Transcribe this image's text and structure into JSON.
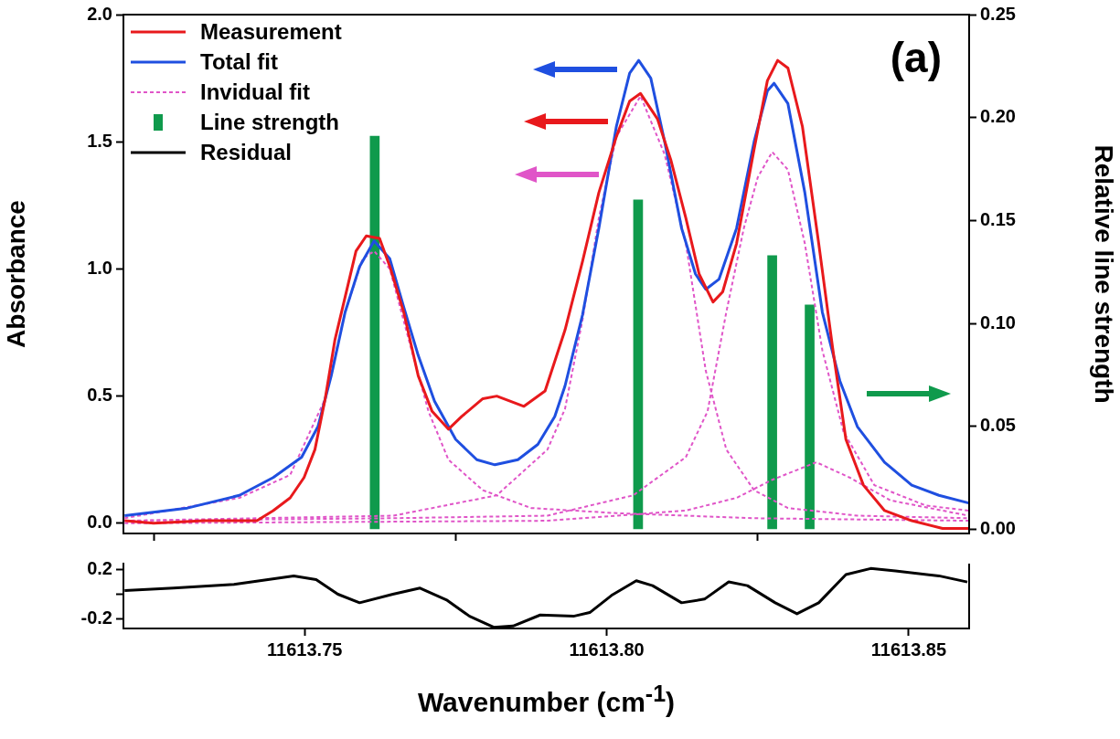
{
  "chart_data": [
    {
      "type": "line",
      "ylabel": "Absorbance",
      "y2label": "Relative line strength",
      "annotations": [
        "(a)"
      ],
      "xlim": [
        11613.72,
        11613.86
      ],
      "xticks": [
        {
          "value": 11613.75,
          "label": null
        },
        {
          "value": 11613.8,
          "label": null
        },
        {
          "value": 11613.85,
          "label": null
        }
      ],
      "ylim": [
        -0.04,
        2.0
      ],
      "yticks": [
        {
          "value": 0,
          "label": "0.0"
        },
        {
          "value": 0.5,
          "label": "0.5"
        },
        {
          "value": 1,
          "label": "1.0"
        },
        {
          "value": 1.5,
          "label": "1.5"
        },
        {
          "value": 2,
          "label": "2.0"
        }
      ],
      "y2lim": [
        -0.002,
        0.25
      ],
      "y2ticks": [
        {
          "value": 0,
          "label": "0.00"
        },
        {
          "value": 0.05,
          "label": "0.05"
        },
        {
          "value": 0.1,
          "label": "0.10"
        },
        {
          "value": 0.15,
          "label": "0.15"
        },
        {
          "value": 0.2,
          "label": "0.20"
        },
        {
          "value": 0.25,
          "label": "0.25"
        }
      ],
      "tick_labels": "y",
      "legend": "top left",
      "marker": "none",
      "series": [
        {
          "name": "Measurement",
          "color": "#e8191c",
          "line_style": "solid",
          "x": [
            11613.7202,
            11613.725,
            11613.7334,
            11613.7421,
            11613.7448,
            11613.7476,
            11613.7499,
            11613.7517,
            11613.7534,
            11613.755,
            11613.7567,
            11613.7585,
            11613.7602,
            11613.7624,
            11613.7641,
            11613.7664,
            11613.7688,
            11613.7711,
            11613.7738,
            11613.776,
            11613.7795,
            11613.7818,
            11613.7863,
            11613.7898,
            11613.7931,
            11613.796,
            11613.7987,
            11613.8016,
            11613.8038,
            11613.8056,
            11613.8084,
            11613.8106,
            11613.8131,
            11613.8153,
            11613.8176,
            11613.8192,
            11613.8215,
            11613.8244,
            11613.8266,
            11613.8283,
            11613.83,
            11613.8324,
            11613.8351,
            11613.8374,
            11613.8396,
            11613.8425,
            11613.846,
            11613.8505,
            11613.8556,
            11613.8599
          ],
          "values": [
            0.01,
            0,
            0.01,
            0.01,
            0.05,
            0.1,
            0.18,
            0.29,
            0.49,
            0.72,
            0.89,
            1.07,
            1.13,
            1.12,
            1.01,
            0.83,
            0.58,
            0.44,
            0.37,
            0.42,
            0.49,
            0.5,
            0.46,
            0.52,
            0.76,
            1.03,
            1.3,
            1.52,
            1.66,
            1.69,
            1.59,
            1.43,
            1.2,
            0.98,
            0.87,
            0.91,
            1.1,
            1.47,
            1.74,
            1.82,
            1.79,
            1.56,
            1.1,
            0.69,
            0.33,
            0.15,
            0.05,
            0.01,
            -0.02,
            -0.02
          ]
        },
        {
          "name": "Total fit",
          "color": "#1f4fe0",
          "line_style": "solid",
          "x": [
            11613.7202,
            11613.7306,
            11613.7392,
            11613.7448,
            11613.7495,
            11613.7522,
            11613.7544,
            11613.7567,
            11613.7591,
            11613.7615,
            11613.7641,
            11613.7664,
            11613.7688,
            11613.7715,
            11613.775,
            11613.7785,
            11613.7815,
            11613.7853,
            11613.7886,
            11613.7914,
            11613.7931,
            11613.796,
            11613.7987,
            11613.8016,
            11613.8038,
            11613.8053,
            11613.8073,
            11613.8096,
            11613.8124,
            11613.8147,
            11613.8164,
            11613.8186,
            11613.8215,
            11613.8244,
            11613.8266,
            11613.8277,
            11613.83,
            11613.8328,
            11613.8357,
            11613.8386,
            11613.8415,
            11613.846,
            11613.8505,
            11613.855,
            11613.8599
          ],
          "values": [
            0.03,
            0.06,
            0.11,
            0.18,
            0.26,
            0.38,
            0.58,
            0.83,
            1.01,
            1.11,
            1.04,
            0.85,
            0.66,
            0.48,
            0.33,
            0.25,
            0.23,
            0.25,
            0.31,
            0.42,
            0.54,
            0.82,
            1.16,
            1.56,
            1.77,
            1.82,
            1.75,
            1.5,
            1.16,
            0.98,
            0.92,
            0.96,
            1.16,
            1.5,
            1.7,
            1.73,
            1.65,
            1.3,
            0.83,
            0.56,
            0.38,
            0.24,
            0.15,
            0.11,
            0.08
          ]
        },
        {
          "name": "Invidual fit",
          "color": "#e055c8",
          "line_style": "dashed",
          "x": [
            11613.7202,
            11613.7392,
            11613.7476,
            11613.7534,
            11613.7567,
            11613.7596,
            11613.7615,
            11613.7641,
            11613.7676,
            11613.7705,
            11613.7738,
            11613.7795,
            11613.7875,
            11613.8016,
            11613.8244,
            11613.8599
          ],
          "values": [
            0.02,
            0.1,
            0.19,
            0.49,
            0.83,
            1.04,
            1.07,
            1.0,
            0.69,
            0.44,
            0.25,
            0.13,
            0.06,
            0.04,
            0.02,
            0.01
          ]
        },
        {
          "color": "#e055c8",
          "line_style": "dashed",
          "x": [
            11613.7202,
            11613.7421,
            11613.7647,
            11613.7818,
            11613.7902,
            11613.7931,
            11613.796,
            11613.7987,
            11613.8016,
            11613.8056,
            11613.8096,
            11613.8131,
            11613.8164,
            11613.8198,
            11613.8244,
            11613.83,
            11613.8415,
            11613.8599
          ],
          "values": [
            0.01,
            0.02,
            0.03,
            0.11,
            0.29,
            0.45,
            0.8,
            1.2,
            1.52,
            1.68,
            1.45,
            1.1,
            0.6,
            0.29,
            0.13,
            0.06,
            0.03,
            0.02
          ]
        },
        {
          "color": "#e055c8",
          "line_style": "dashed",
          "x": [
            11613.7202,
            11613.7647,
            11613.7902,
            11613.8044,
            11613.8131,
            11613.8167,
            11613.8198,
            11613.8227,
            11613.825,
            11613.8274,
            11613.83,
            11613.8328,
            11613.8357,
            11613.8392,
            11613.8443,
            11613.8528,
            11613.8599
          ],
          "values": [
            0.01,
            0.02,
            0.03,
            0.11,
            0.26,
            0.44,
            0.83,
            1.16,
            1.36,
            1.46,
            1.39,
            1.1,
            0.68,
            0.36,
            0.15,
            0.07,
            0.05
          ]
        },
        {
          "color": "#e055c8",
          "line_style": "dashed",
          "x": [
            11613.7202,
            11613.7902,
            11613.8131,
            11613.8215,
            11613.8273,
            11613.8347,
            11613.8402,
            11613.847,
            11613.8599
          ],
          "values": [
            0,
            0.01,
            0.05,
            0.1,
            0.17,
            0.24,
            0.18,
            0.09,
            0.03
          ]
        },
        {
          "name": "Line strength",
          "type": "bar",
          "axis": "y2",
          "color": "#0f9a4c",
          "x": [
            11613.7616,
            11613.8052,
            11613.8274,
            11613.8336
          ],
          "values": [
            0.191,
            0.16,
            0.133,
            0.109
          ]
        }
      ]
    },
    {
      "type": "line",
      "xlabel": "Wavenumber (cm$^{-1}$)",
      "xlim": [
        11613.72,
        11613.86
      ],
      "xticks": [
        {
          "value": 11613.75,
          "label": "11613.75"
        },
        {
          "value": 11613.8,
          "label": "11613.80"
        },
        {
          "value": 11613.85,
          "label": "11613.85"
        }
      ],
      "ylim": [
        -0.28,
        0.25
      ],
      "yticks": [
        0.2,
        {
          "value": 0,
          "label": null
        },
        -0.2
      ],
      "marker": "none",
      "series": [
        {
          "name": "Residual",
          "color": "#000000",
          "line_style": "solid",
          "x": [
            11613.7202,
            11613.7283,
            11613.7383,
            11613.7482,
            11613.7519,
            11613.7555,
            11613.7591,
            11613.7646,
            11613.7691,
            11613.7736,
            11613.7773,
            11613.7813,
            11613.7845,
            11613.789,
            11613.7945,
            11613.7972,
            11613.8008,
            11613.8049,
            11613.8076,
            11613.8124,
            11613.8162,
            11613.8202,
            11613.8233,
            11613.8279,
            11613.8315,
            11613.8351,
            11613.8396,
            11613.8437,
            11613.8478,
            11613.855,
            11613.8597
          ],
          "values": [
            0.03,
            0.05,
            0.08,
            0.15,
            0.12,
            0,
            -0.07,
            0,
            0.05,
            -0.05,
            -0.18,
            -0.27,
            -0.26,
            -0.17,
            -0.18,
            -0.15,
            -0.01,
            0.11,
            0.07,
            -0.07,
            -0.04,
            0.1,
            0.07,
            -0.07,
            -0.16,
            -0.07,
            0.16,
            0.21,
            0.19,
            0.15,
            0.1
          ]
        }
      ]
    }
  ]
}
